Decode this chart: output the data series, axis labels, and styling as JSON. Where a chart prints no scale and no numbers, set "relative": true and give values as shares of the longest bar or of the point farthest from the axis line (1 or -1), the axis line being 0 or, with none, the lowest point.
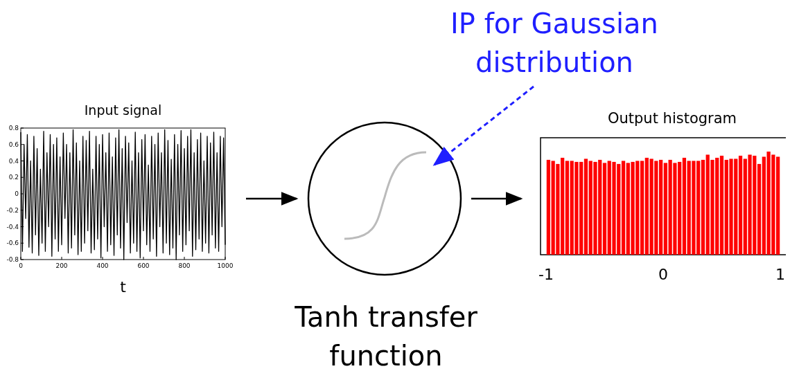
{
  "chart_data": [
    {
      "type": "line",
      "title": "Input signal",
      "xlabel": "t",
      "xlim": [
        0,
        1000
      ],
      "xticks": [
        0,
        200,
        400,
        600,
        800,
        1000
      ],
      "ylim": [
        -0.8,
        0.8
      ],
      "yticks": [
        -0.8,
        -0.6,
        -0.4,
        -0.2,
        0,
        0.2,
        0.4,
        0.6,
        0.8
      ],
      "series": [
        {
          "color": "#000000",
          "x": [
            0,
            8,
            16,
            24,
            32,
            40,
            48,
            56,
            64,
            72,
            80,
            88,
            96,
            104,
            112,
            120,
            128,
            136,
            144,
            152,
            160,
            168,
            176,
            184,
            192,
            200,
            208,
            216,
            224,
            232,
            240,
            248,
            256,
            264,
            272,
            280,
            288,
            296,
            304,
            312,
            320,
            328,
            336,
            344,
            352,
            360,
            368,
            376,
            384,
            392,
            400,
            408,
            416,
            424,
            432,
            440,
            448,
            456,
            464,
            472,
            480,
            488,
            496,
            504,
            512,
            520,
            528,
            536,
            544,
            552,
            560,
            568,
            576,
            584,
            592,
            600,
            608,
            616,
            624,
            632,
            640,
            648,
            656,
            664,
            672,
            680,
            688,
            696,
            704,
            712,
            720,
            728,
            736,
            744,
            752,
            760,
            768,
            776,
            784,
            792,
            800,
            808,
            816,
            824,
            832,
            840,
            848,
            856,
            864,
            872,
            880,
            888,
            896,
            904,
            912,
            920,
            928,
            936,
            944,
            952,
            960,
            968,
            976,
            984,
            992,
            1000
          ],
          "values": [
            0.75,
            -0.7,
            0.6,
            -0.3,
            0.72,
            -0.65,
            0.4,
            -0.72,
            0.7,
            -0.5,
            0.55,
            -0.75,
            0.3,
            -0.6,
            0.76,
            -0.7,
            0.5,
            -0.4,
            0.72,
            -0.76,
            0.6,
            -0.55,
            0.68,
            -0.7,
            0.45,
            -0.62,
            0.74,
            -0.3,
            0.6,
            -0.72,
            0.5,
            -0.66,
            0.78,
            -0.5,
            0.62,
            -0.74,
            0.4,
            -0.7,
            0.7,
            -0.6,
            0.65,
            -0.45,
            0.76,
            -0.72,
            0.3,
            -0.68,
            0.7,
            -0.55,
            0.6,
            -0.78,
            0.72,
            -0.4,
            0.5,
            -0.7,
            0.74,
            -0.62,
            0.45,
            -0.75,
            0.68,
            -0.5,
            0.78,
            -0.66,
            0.55,
            -0.8,
            0.7,
            -0.35,
            0.62,
            -0.72,
            0.4,
            -0.6,
            0.75,
            -0.7,
            0.5,
            -0.78,
            0.66,
            -0.45,
            0.72,
            -0.62,
            0.35,
            -0.7,
            0.7,
            -0.55,
            0.6,
            -0.76,
            0.74,
            -0.4,
            0.5,
            -0.72,
            0.78,
            -0.6,
            0.65,
            -0.74,
            0.42,
            -0.66,
            0.72,
            -0.8,
            0.6,
            -0.5,
            0.77,
            -0.7,
            0.55,
            -0.62,
            0.7,
            -0.45,
            0.78,
            -0.76,
            0.5,
            -0.68,
            0.66,
            -0.55,
            0.74,
            -0.7,
            0.4,
            -0.6,
            0.7,
            -0.72,
            0.62,
            -0.5,
            0.75,
            -0.66,
            0.5,
            -0.7,
            0.7,
            -0.4,
            0.68,
            -0.62
          ]
        }
      ]
    },
    {
      "type": "bar",
      "title": "Output histogram",
      "relative": true,
      "color": "#ff0000",
      "xlim": [
        -1,
        1
      ],
      "xticks": [
        -1,
        0,
        1
      ],
      "x": [
        -0.98,
        -0.94,
        -0.9,
        -0.86,
        -0.82,
        -0.78,
        -0.74,
        -0.7,
        -0.66,
        -0.62,
        -0.58,
        -0.54,
        -0.5,
        -0.46,
        -0.42,
        -0.38,
        -0.34,
        -0.3,
        -0.26,
        -0.22,
        -0.18,
        -0.14,
        -0.1,
        -0.06,
        -0.02,
        0.02,
        0.06,
        0.1,
        0.14,
        0.18,
        0.22,
        0.26,
        0.3,
        0.34,
        0.38,
        0.42,
        0.46,
        0.5,
        0.54,
        0.58,
        0.62,
        0.66,
        0.7,
        0.74,
        0.78,
        0.82,
        0.86,
        0.9,
        0.94,
        0.98
      ],
      "values": [
        0.92,
        0.91,
        0.88,
        0.94,
        0.91,
        0.91,
        0.9,
        0.9,
        0.93,
        0.91,
        0.9,
        0.92,
        0.89,
        0.91,
        0.9,
        0.88,
        0.91,
        0.89,
        0.9,
        0.91,
        0.91,
        0.94,
        0.93,
        0.91,
        0.92,
        0.89,
        0.92,
        0.89,
        0.9,
        0.94,
        0.91,
        0.91,
        0.91,
        0.92,
        0.97,
        0.92,
        0.94,
        0.96,
        0.92,
        0.93,
        0.93,
        0.96,
        0.93,
        0.97,
        0.96,
        0.88,
        0.95,
        1,
        0.97,
        0.95
      ]
    },
    {
      "type": "other",
      "annotations": [
        "IP for Gaussian distribution",
        "Tanh transfer function"
      ]
    }
  ]
}
